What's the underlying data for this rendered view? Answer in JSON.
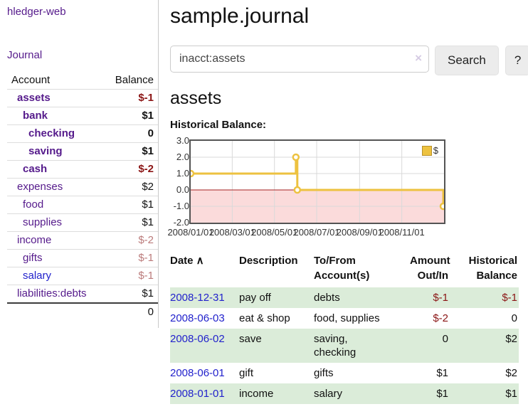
{
  "colors": {
    "link_purple": "#551a8b",
    "link_blue": "#2222cc",
    "neg_strong": "#8b1515",
    "neg_soft": "#bb7b7b",
    "row_green": "#dbecd9",
    "chart_line": "#edc240",
    "chart_fill_neg": "#fbdbdb",
    "chart_zero": "#a62121",
    "grid": "#d9d9d9",
    "plot_border": "#545454"
  },
  "sidebar": {
    "brand": "hledger-web",
    "nav": [
      {
        "label": "Journal"
      }
    ],
    "accounts": {
      "headers": {
        "account": "Account",
        "balance": "Balance"
      },
      "rows": [
        {
          "name": "assets",
          "balance": "$-1",
          "indent": 1,
          "bold": true,
          "name_color": "purple",
          "balance_color": "dark-red"
        },
        {
          "name": "bank",
          "balance": "$1",
          "indent": 2,
          "bold": true,
          "name_color": "purple",
          "balance_color": "black"
        },
        {
          "name": "checking",
          "balance": "0",
          "indent": 3,
          "bold": true,
          "name_color": "purple",
          "balance_color": "black"
        },
        {
          "name": "saving",
          "balance": "$1",
          "indent": 3,
          "bold": true,
          "name_color": "purple",
          "balance_color": "black"
        },
        {
          "name": "cash",
          "balance": "$-2",
          "indent": 2,
          "bold": true,
          "name_color": "purple",
          "balance_color": "dark-red"
        },
        {
          "name": "expenses",
          "balance": "$2",
          "indent": 1,
          "bold": false,
          "name_color": "purple",
          "balance_color": "black"
        },
        {
          "name": "food",
          "balance": "$1",
          "indent": 2,
          "bold": false,
          "name_color": "purple",
          "balance_color": "black"
        },
        {
          "name": "supplies",
          "balance": "$1",
          "indent": 2,
          "bold": false,
          "name_color": "purple",
          "balance_color": "black"
        },
        {
          "name": "income",
          "balance": "$-2",
          "indent": 1,
          "bold": false,
          "name_color": "purple",
          "balance_color": "rose"
        },
        {
          "name": "gifts",
          "balance": "$-1",
          "indent": 2,
          "bold": false,
          "name_color": "purple",
          "balance_color": "rose"
        },
        {
          "name": "salary",
          "balance": "$-1",
          "indent": 2,
          "bold": false,
          "name_color": "blue",
          "balance_color": "rose"
        },
        {
          "name": "liabilities:debts",
          "balance": "$1",
          "indent": 1,
          "bold": false,
          "name_color": "purple",
          "balance_color": "black"
        }
      ],
      "total": "0"
    }
  },
  "main": {
    "title": "sample.journal",
    "search": {
      "value": "inacct:assets",
      "clear_icon": "×",
      "search_label": "Search",
      "help_label": "?"
    },
    "account_heading": "assets",
    "chart_label": "Historical Balance:"
  },
  "chart_data": {
    "type": "line",
    "title": "Historical Balance:",
    "step": true,
    "x_range": [
      "2008/01/01",
      "2009/01/01"
    ],
    "ylim": [
      -2.0,
      3.0
    ],
    "y_ticks": [
      "3.0",
      "2.0",
      "1.0",
      "0.0",
      "-1.0",
      "-2.0"
    ],
    "x_ticks": [
      "2008/01/01",
      "2008/03/01",
      "2008/05/01",
      "2008/07/01",
      "2008/09/01",
      "2008/11/01"
    ],
    "series": [
      {
        "name": "$",
        "points": [
          [
            "2008/01/01",
            1
          ],
          [
            "2008/06/01",
            2
          ],
          [
            "2008/06/03",
            0
          ],
          [
            "2008/12/31",
            -1
          ]
        ]
      }
    ],
    "legend_position": "top-right",
    "grid": true,
    "negative_region_shaded": true
  },
  "register": {
    "headers": [
      {
        "lines": [
          "Date"
        ],
        "sort_icon": "∧",
        "align": "left"
      },
      {
        "lines": [
          "Description"
        ],
        "align": "left"
      },
      {
        "lines": [
          "To/From",
          "Account(s)"
        ],
        "align": "left"
      },
      {
        "lines": [
          "Amount",
          "Out/In"
        ],
        "align": "right"
      },
      {
        "lines": [
          "Historical",
          "Balance"
        ],
        "align": "right"
      }
    ],
    "rows": [
      {
        "date": "2008-12-31",
        "description": "pay off",
        "accounts": "debts",
        "amount": "$-1",
        "balance": "$-1",
        "shaded": true,
        "amount_color": "dark-red",
        "balance_color": "dark-red"
      },
      {
        "date": "2008-06-03",
        "description": "eat & shop",
        "accounts": "food, supplies",
        "amount": "$-2",
        "balance": "0",
        "shaded": false,
        "amount_color": "dark-red",
        "balance_color": "black"
      },
      {
        "date": "2008-06-02",
        "description": "save",
        "accounts": "saving,\nchecking",
        "amount": "0",
        "balance": "$2",
        "shaded": true,
        "amount_color": "black",
        "balance_color": "black"
      },
      {
        "date": "2008-06-01",
        "description": "gift",
        "accounts": "gifts",
        "amount": "$1",
        "balance": "$2",
        "shaded": false,
        "amount_color": "black",
        "balance_color": "black"
      },
      {
        "date": "2008-01-01",
        "description": "income",
        "accounts": "salary",
        "amount": "$1",
        "balance": "$1",
        "shaded": true,
        "amount_color": "black",
        "balance_color": "black"
      }
    ]
  }
}
